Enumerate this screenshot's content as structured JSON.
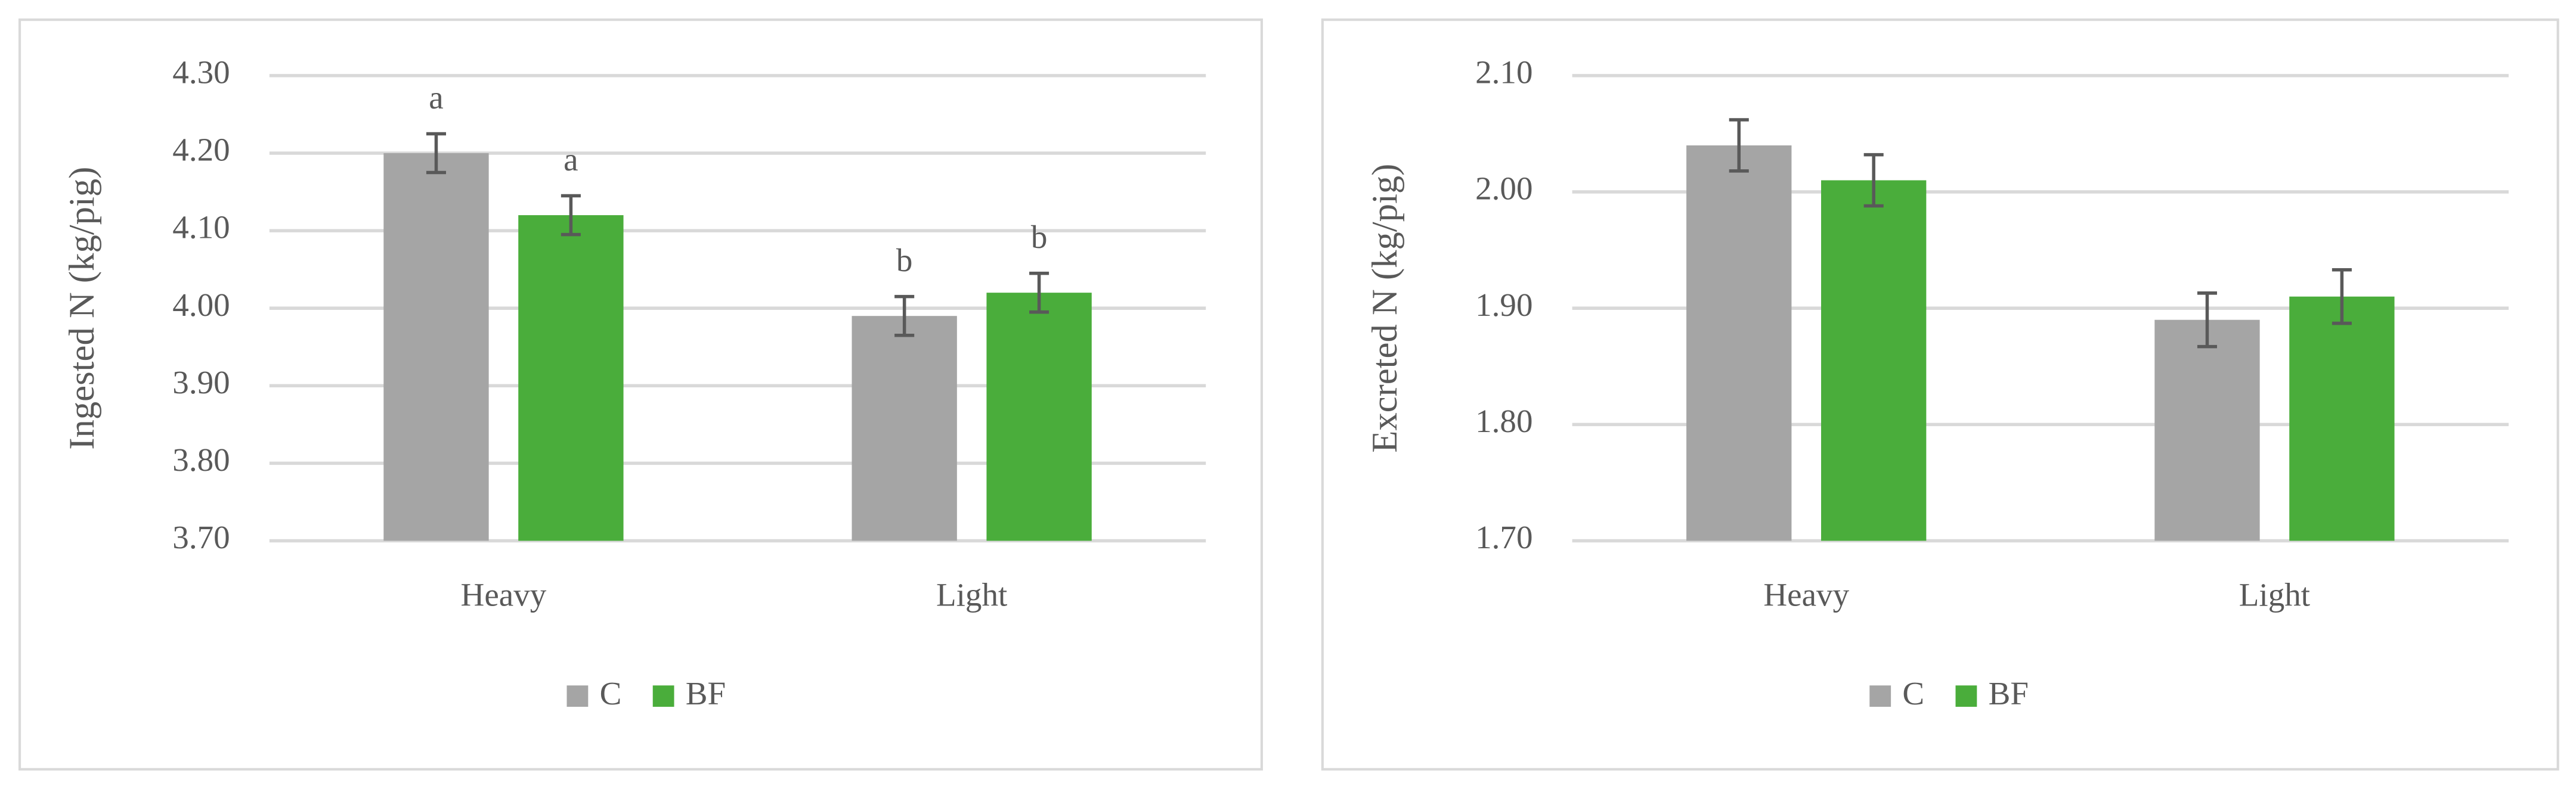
{
  "chart_data": [
    {
      "type": "bar",
      "y_label": "Ingested N (kg/pig)",
      "categories": [
        "Heavy",
        "Light"
      ],
      "series": [
        {
          "name": "C",
          "color": "#a5a5a5",
          "values": [
            4.2,
            3.99
          ],
          "errors": [
            0.025,
            0.025
          ],
          "annotations": [
            "a",
            "b"
          ]
        },
        {
          "name": "BF",
          "color": "#4aad3b",
          "values": [
            4.12,
            4.02
          ],
          "errors": [
            0.025,
            0.025
          ],
          "annotations": [
            "a",
            "b"
          ]
        }
      ],
      "ylim": [
        3.7,
        4.3
      ],
      "yticks": [
        {
          "value": 3.7,
          "label": "3.70"
        },
        {
          "value": 3.8,
          "label": "3.80"
        },
        {
          "value": 3.9,
          "label": "3.90"
        },
        {
          "value": 4.0,
          "label": "4.00"
        },
        {
          "value": 4.1,
          "label": "4.10"
        },
        {
          "value": 4.2,
          "label": "4.20"
        },
        {
          "value": 4.3,
          "label": "4.30"
        }
      ],
      "grid": true,
      "legend": "bottom"
    },
    {
      "type": "bar",
      "y_label": "Excreted N (kg/pig)",
      "categories": [
        "Heavy",
        "Light"
      ],
      "series": [
        {
          "name": "C",
          "color": "#a5a5a5",
          "values": [
            2.04,
            1.89
          ],
          "errors": [
            0.022,
            0.023
          ]
        },
        {
          "name": "BF",
          "color": "#4aad3b",
          "values": [
            2.01,
            1.91
          ],
          "errors": [
            0.022,
            0.023
          ]
        }
      ],
      "ylim": [
        1.7,
        2.1
      ],
      "yticks": [
        {
          "value": 1.7,
          "label": "1.70"
        },
        {
          "value": 1.8,
          "label": "1.80"
        },
        {
          "value": 1.9,
          "label": "1.90"
        },
        {
          "value": 2.0,
          "label": "2.00"
        },
        {
          "value": 2.1,
          "label": "2.10"
        }
      ],
      "grid": true,
      "legend": "bottom"
    }
  ]
}
